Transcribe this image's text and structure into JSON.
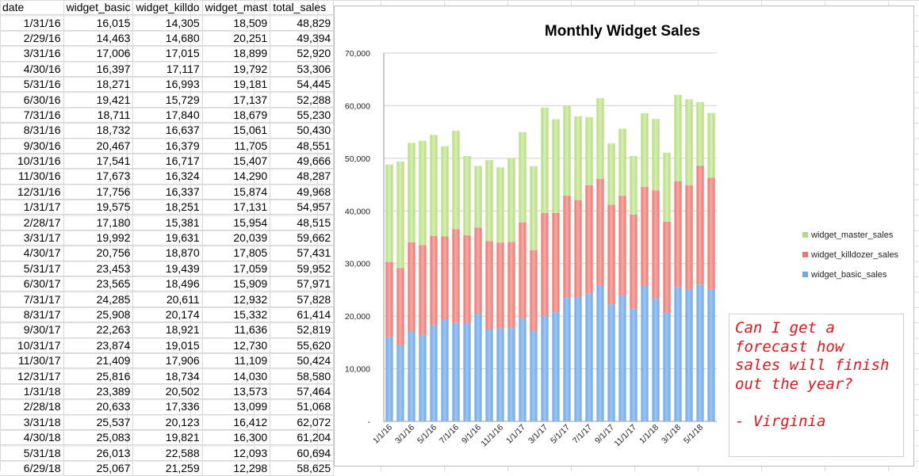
{
  "sheet": {
    "headers": [
      "date",
      "widget_basic",
      "widget_killdo",
      "widget_mast",
      "total_sales"
    ],
    "rows": [
      [
        "1/31/16",
        "16,015",
        "14,305",
        "18,509",
        "48,829"
      ],
      [
        "2/29/16",
        "14,463",
        "14,680",
        "20,251",
        "49,394"
      ],
      [
        "3/31/16",
        "17,006",
        "17,015",
        "18,899",
        "52,920"
      ],
      [
        "4/30/16",
        "16,397",
        "17,117",
        "19,792",
        "53,306"
      ],
      [
        "5/31/16",
        "18,271",
        "16,993",
        "19,181",
        "54,445"
      ],
      [
        "6/30/16",
        "19,421",
        "15,729",
        "17,137",
        "52,288"
      ],
      [
        "7/31/16",
        "18,711",
        "17,840",
        "18,679",
        "55,230"
      ],
      [
        "8/31/16",
        "18,732",
        "16,637",
        "15,061",
        "50,430"
      ],
      [
        "9/30/16",
        "20,467",
        "16,379",
        "11,705",
        "48,551"
      ],
      [
        "10/31/16",
        "17,541",
        "16,717",
        "15,407",
        "49,666"
      ],
      [
        "11/30/16",
        "17,673",
        "16,324",
        "14,290",
        "48,287"
      ],
      [
        "12/31/16",
        "17,756",
        "16,337",
        "15,874",
        "49,968"
      ],
      [
        "1/31/17",
        "19,575",
        "18,251",
        "17,131",
        "54,957"
      ],
      [
        "2/28/17",
        "17,180",
        "15,381",
        "15,954",
        "48,515"
      ],
      [
        "3/31/17",
        "19,992",
        "19,631",
        "20,039",
        "59,662"
      ],
      [
        "4/30/17",
        "20,756",
        "18,870",
        "17,805",
        "57,431"
      ],
      [
        "5/31/17",
        "23,453",
        "19,439",
        "17,059",
        "59,952"
      ],
      [
        "6/30/17",
        "23,565",
        "18,496",
        "15,909",
        "57,971"
      ],
      [
        "7/31/17",
        "24,285",
        "20,611",
        "12,932",
        "57,828"
      ],
      [
        "8/31/17",
        "25,908",
        "20,174",
        "15,332",
        "61,414"
      ],
      [
        "9/30/17",
        "22,263",
        "18,921",
        "11,636",
        "52,819"
      ],
      [
        "10/31/17",
        "23,874",
        "19,015",
        "12,730",
        "55,620"
      ],
      [
        "11/30/17",
        "21,409",
        "17,906",
        "11,109",
        "50,424"
      ],
      [
        "12/31/17",
        "25,816",
        "18,734",
        "14,030",
        "58,580"
      ],
      [
        "1/31/18",
        "23,389",
        "20,502",
        "13,573",
        "57,464"
      ],
      [
        "2/28/18",
        "20,633",
        "17,336",
        "13,099",
        "51,068"
      ],
      [
        "3/31/18",
        "25,537",
        "20,123",
        "16,412",
        "62,072"
      ],
      [
        "4/30/18",
        "25,083",
        "19,821",
        "16,300",
        "61,204"
      ],
      [
        "5/31/18",
        "26,013",
        "22,588",
        "12,093",
        "60,694"
      ],
      [
        "6/29/18",
        "25,067",
        "21,259",
        "12,298",
        "58,625"
      ]
    ]
  },
  "chart_data": {
    "type": "bar",
    "stacked": true,
    "title": "Monthly Widget Sales",
    "xlabel": "",
    "ylabel": "",
    "ylim": [
      0,
      70000
    ],
    "yticks": [
      0,
      10000,
      20000,
      30000,
      40000,
      50000,
      60000,
      70000
    ],
    "ytick_labels": [
      "-",
      "10,000",
      "20,000",
      "30,000",
      "40,000",
      "50,000",
      "60,000",
      "70,000"
    ],
    "categories": [
      "1/1/16",
      "2/1/16",
      "3/1/16",
      "4/1/16",
      "5/1/16",
      "6/1/16",
      "7/1/16",
      "8/1/16",
      "9/1/16",
      "10/1/16",
      "11/1/16",
      "12/1/16",
      "1/1/17",
      "2/1/17",
      "3/1/17",
      "4/1/17",
      "5/1/17",
      "6/1/17",
      "7/1/17",
      "8/1/17",
      "9/1/17",
      "10/1/17",
      "11/1/17",
      "12/1/17",
      "1/1/18",
      "2/1/18",
      "3/1/18",
      "4/1/18",
      "5/1/18",
      "6/1/18"
    ],
    "xtick_labels": [
      "1/1/16",
      "3/1/16",
      "5/1/16",
      "7/1/16",
      "9/1/16",
      "11/1/16",
      "1/1/17",
      "3/1/17",
      "5/1/17",
      "7/1/17",
      "9/1/17",
      "11/1/17",
      "1/1/18",
      "3/1/18",
      "5/1/18"
    ],
    "series": [
      {
        "name": "widget_basic_sales",
        "color": "#6fa8e8",
        "values": [
          16015,
          14463,
          17006,
          16397,
          18271,
          19421,
          18711,
          18732,
          20467,
          17541,
          17673,
          17756,
          19575,
          17180,
          19992,
          20756,
          23453,
          23565,
          24285,
          25908,
          22263,
          23874,
          21409,
          25816,
          23389,
          20633,
          25537,
          25083,
          26013,
          25067
        ]
      },
      {
        "name": "widget_killdozer_sales",
        "color": "#ee7670",
        "values": [
          14305,
          14680,
          17015,
          17117,
          16993,
          15729,
          17840,
          16637,
          16379,
          16717,
          16324,
          16337,
          18251,
          15381,
          19631,
          18870,
          19439,
          18496,
          20611,
          20174,
          18921,
          19015,
          17906,
          18734,
          20502,
          17336,
          20123,
          19821,
          22588,
          21259
        ]
      },
      {
        "name": "widget_master_sales",
        "color": "#b5dc7f",
        "values": [
          18509,
          20251,
          18899,
          19792,
          19181,
          17137,
          18679,
          15061,
          11705,
          15407,
          14290,
          15874,
          17131,
          15954,
          20039,
          17805,
          17059,
          15909,
          12932,
          15332,
          11636,
          12730,
          11109,
          14030,
          13573,
          13099,
          16412,
          16300,
          12093,
          12298
        ]
      }
    ],
    "legend_position": "right",
    "grid": true
  },
  "note": {
    "lines": [
      "Can I get a",
      "forecast how",
      "sales will finish",
      "out the year?"
    ],
    "signature": "- Virginia"
  }
}
